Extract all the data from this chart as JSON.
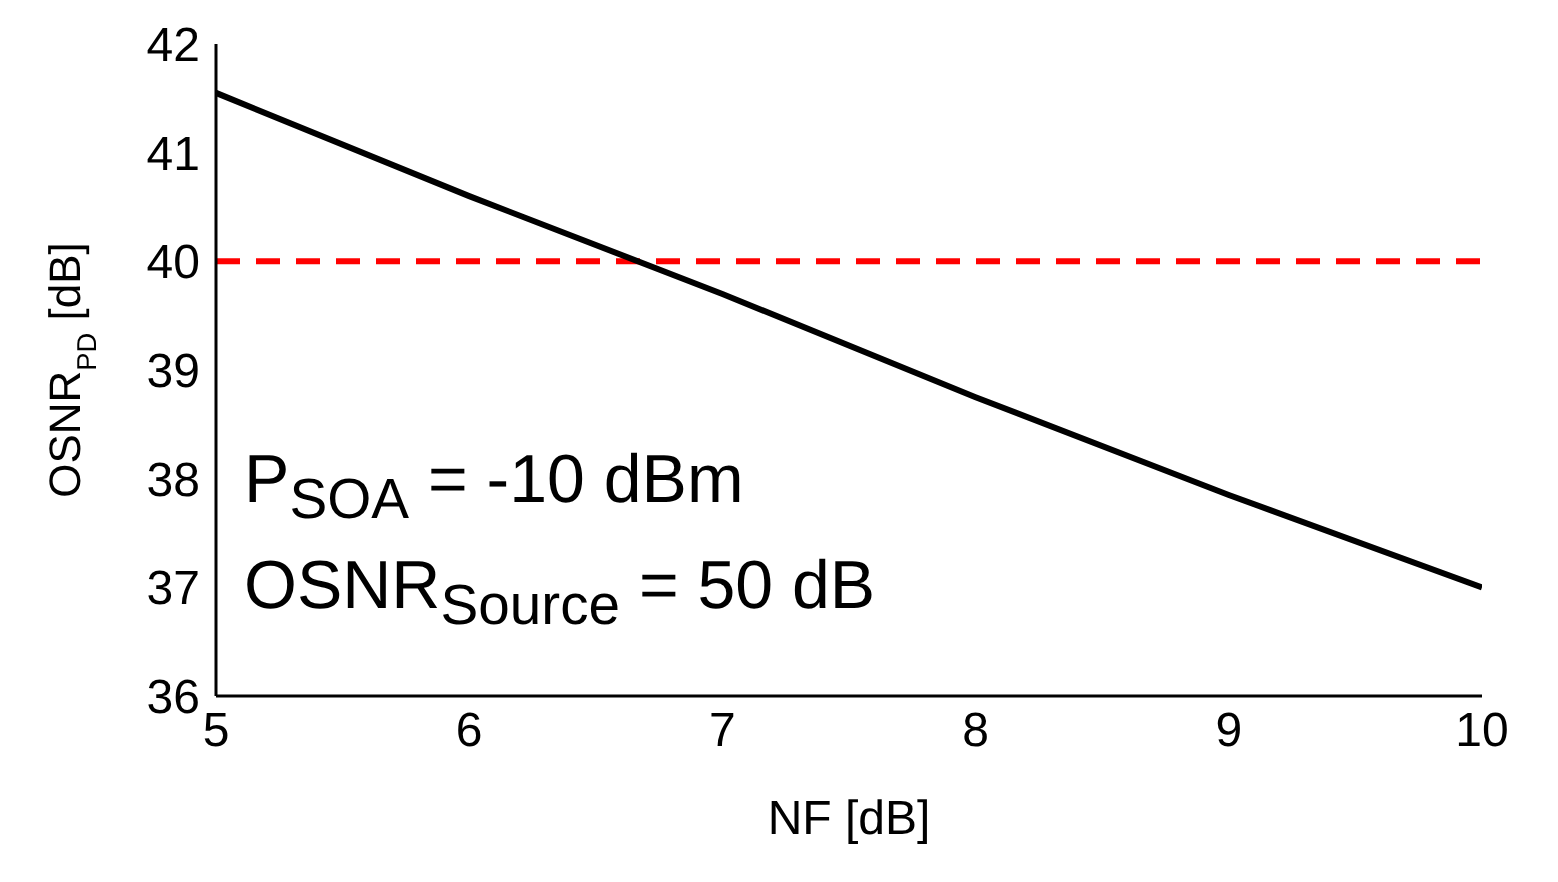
{
  "chart_data": {
    "type": "line",
    "xlabel": "NF [dB]",
    "ylabel": "OSNR$_{PD}$ [dB]",
    "x": [
      5,
      6,
      7,
      8,
      9,
      10
    ],
    "series": [
      {
        "color": "#000000",
        "values": [
          41.55,
          40.6,
          39.7,
          38.75,
          37.85,
          37.0
        ]
      }
    ],
    "xlim": [
      5,
      10
    ],
    "xticks": [
      5,
      6,
      7,
      8,
      9,
      10
    ],
    "ylim": [
      36,
      42
    ],
    "yticks": [
      36,
      37,
      38,
      39,
      40,
      41,
      42
    ],
    "ref_lines": [
      {
        "axis": "y",
        "value": 40,
        "color": "#ff0000",
        "line_style": "dashed"
      }
    ],
    "annotations": [
      "P$_{SOA}$ = -10 dBm",
      "OSNR$_{Source}$ = 50 dB"
    ],
    "grid": false,
    "marker": "none",
    "line_style": "solid"
  }
}
